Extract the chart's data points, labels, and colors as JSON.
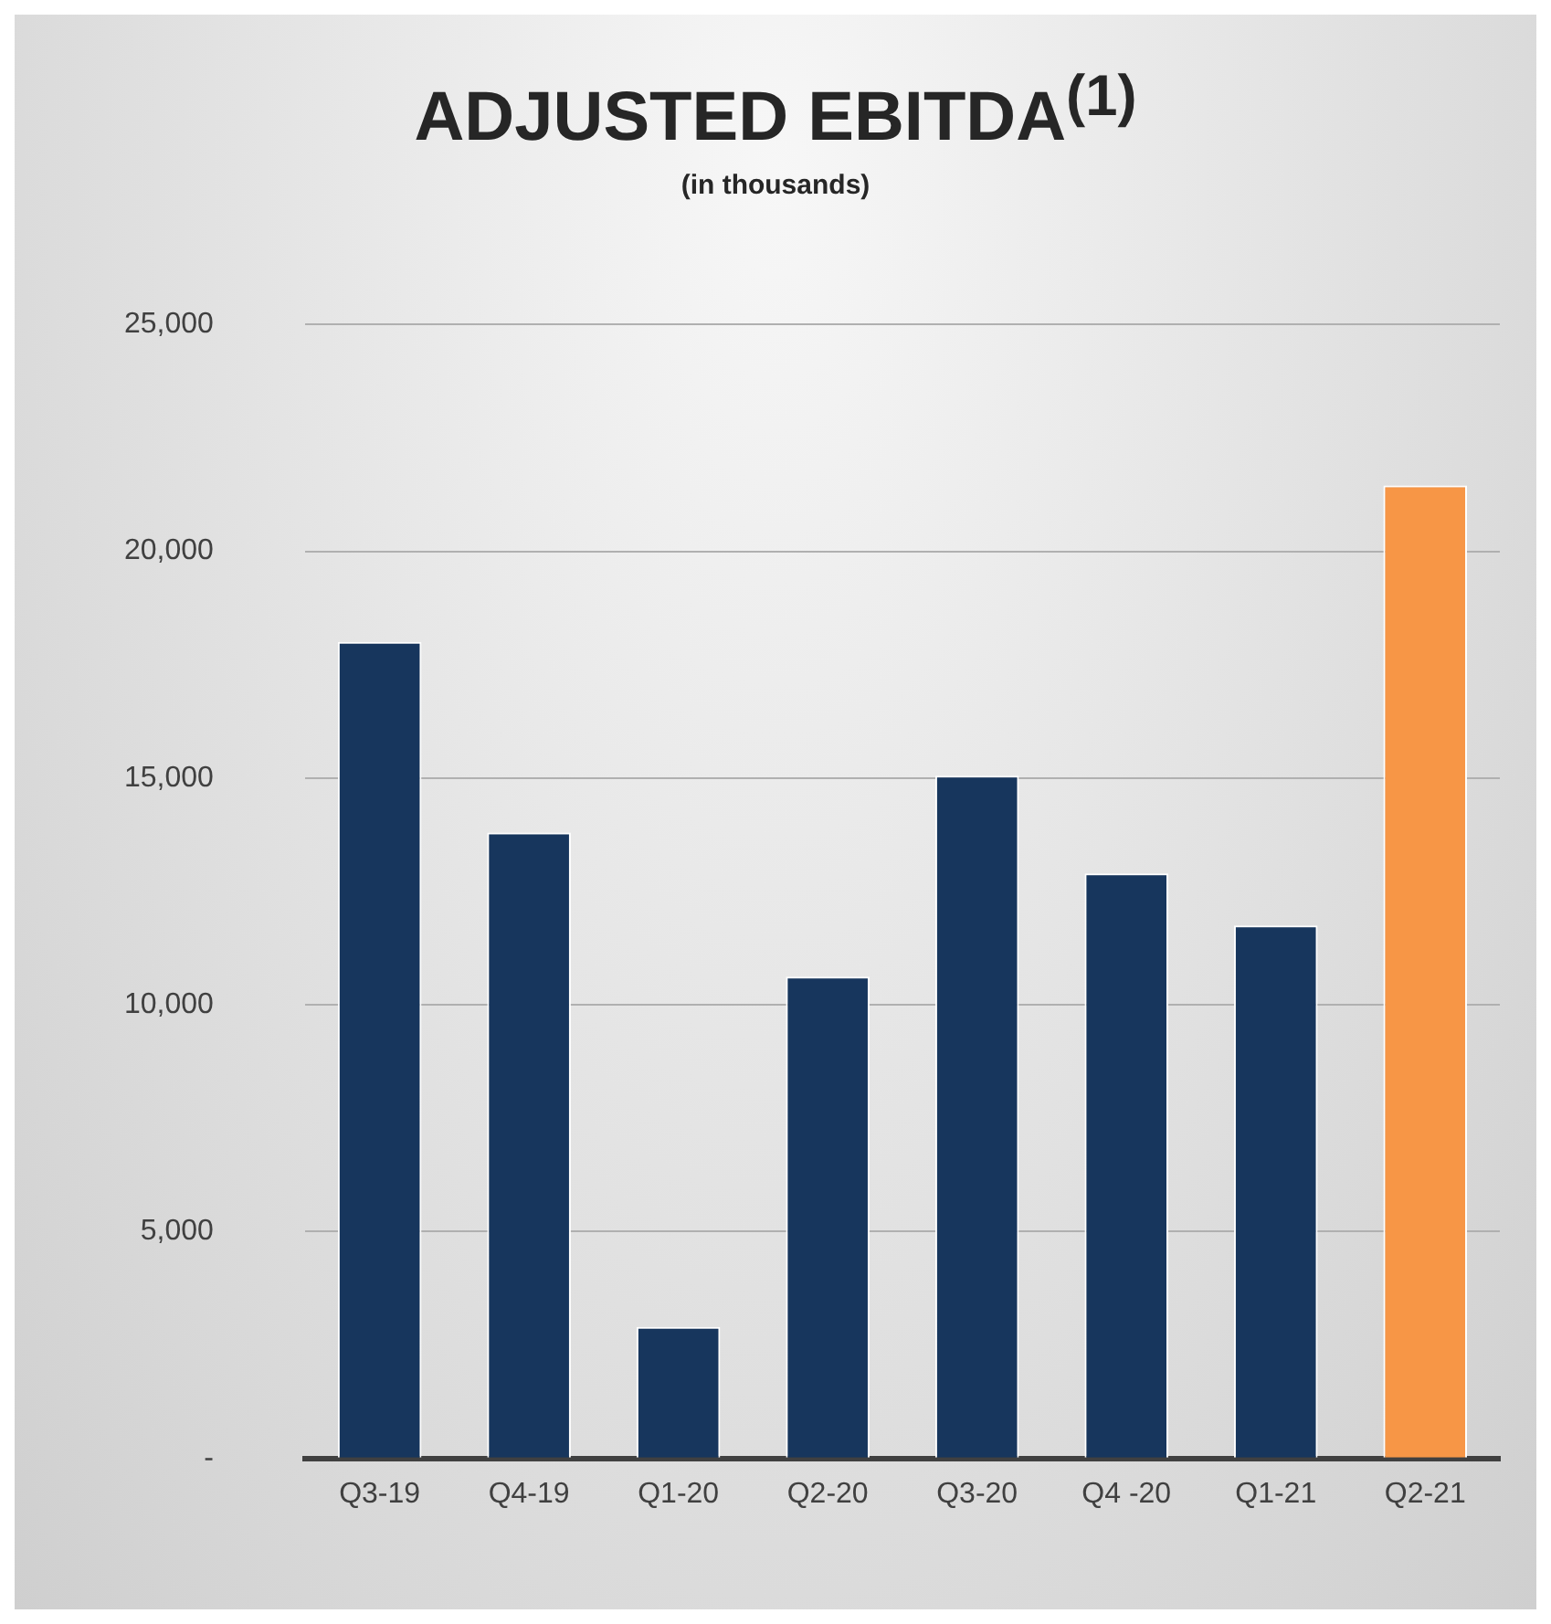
{
  "chart_data": {
    "type": "bar",
    "title": "ADJUSTED EBITDA$^{(1)}$",
    "subtitle": "(in thousands)",
    "categories": [
      "Q3-19",
      "Q4-19",
      "Q1-20",
      "Q2-20",
      "Q3-20",
      "Q4 -20",
      "Q1-21",
      "Q2-21"
    ],
    "values": [
      18000,
      13800,
      2900,
      10620,
      15050,
      12900,
      11750,
      21450
    ],
    "colors": [
      "#17365d",
      "#17365d",
      "#17365d",
      "#17365d",
      "#17365d",
      "#17365d",
      "#17365d",
      "#f79646"
    ],
    "ylim": [
      0,
      25000
    ],
    "yticks": [
      {
        "value": 0,
        "label": "-"
      },
      {
        "value": 5000,
        "label": "5,000"
      },
      {
        "value": 10000,
        "label": "10,000"
      },
      {
        "value": 15000,
        "label": "15,000"
      },
      {
        "value": 20000,
        "label": "20,000"
      },
      {
        "value": 25000,
        "label": "25,000"
      }
    ],
    "grid": "y"
  }
}
